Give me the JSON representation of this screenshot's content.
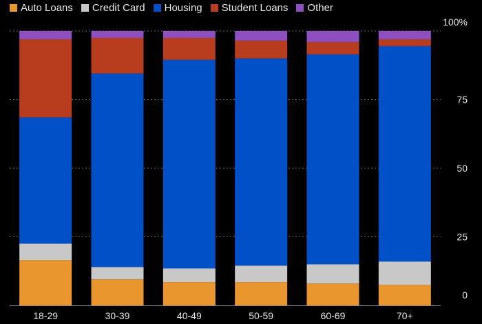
{
  "chart_data": {
    "type": "bar",
    "stacked": true,
    "percent_stacked": true,
    "categories": [
      "18-29",
      "30-39",
      "40-49",
      "50-59",
      "60-69",
      "70+"
    ],
    "series": [
      {
        "name": "Auto Loans",
        "color": "#e8962d",
        "values": [
          16.5,
          9.5,
          8.5,
          8.5,
          8.0,
          7.5
        ]
      },
      {
        "name": "Credit Card",
        "color": "#c8c8c8",
        "values": [
          6.0,
          4.5,
          5.0,
          6.0,
          7.0,
          8.5
        ]
      },
      {
        "name": "Housing",
        "color": "#0050c8",
        "values": [
          46.0,
          70.5,
          76.0,
          75.5,
          76.5,
          78.5
        ]
      },
      {
        "name": "Student Loans",
        "color": "#b83c1e",
        "values": [
          28.5,
          13.0,
          8.0,
          6.5,
          4.5,
          2.5
        ]
      },
      {
        "name": "Other",
        "color": "#8e4fc0",
        "values": [
          3.0,
          2.5,
          2.5,
          3.5,
          4.0,
          3.0
        ]
      }
    ],
    "yticks": [
      "0",
      "25",
      "50",
      "75",
      "100%"
    ],
    "ytick_values": [
      0,
      25,
      50,
      75,
      100
    ],
    "ylim": [
      0,
      100
    ],
    "grid": true,
    "legend_position": "top-left",
    "background": "#000000",
    "axis_text_color": "#e6e6e6"
  }
}
